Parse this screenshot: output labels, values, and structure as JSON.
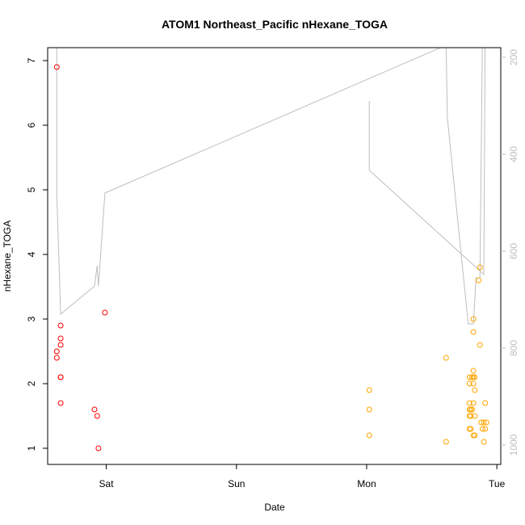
{
  "chart_data": {
    "type": "scatter",
    "title": "ATOM1 Northeast_Pacific nHexane_TOGA",
    "xlabel": "Date",
    "ylabel": "nHexane_TOGA",
    "x_unit": "days since Sat 00:00",
    "xlim": [
      -0.45,
      3.03
    ],
    "ylim": [
      0.75,
      7.2
    ],
    "x_ticks": [
      {
        "value": 0,
        "label": "Sat"
      },
      {
        "value": 1,
        "label": "Sun"
      },
      {
        "value": 2,
        "label": "Mon"
      },
      {
        "value": 3,
        "label": "Tue"
      }
    ],
    "y_ticks": [
      {
        "value": 1,
        "label": "1"
      },
      {
        "value": 2,
        "label": "2"
      },
      {
        "value": 3,
        "label": "3"
      },
      {
        "value": 4,
        "label": "4"
      },
      {
        "value": 5,
        "label": "5"
      },
      {
        "value": 6,
        "label": "6"
      },
      {
        "value": 7,
        "label": "7"
      }
    ],
    "right_axis": {
      "range": [
        180,
        1040
      ],
      "reversed": true,
      "ticks": [
        {
          "value": 200,
          "label": "200"
        },
        {
          "value": 400,
          "label": "400"
        },
        {
          "value": 600,
          "label": "600"
        },
        {
          "value": 800,
          "label": "800"
        },
        {
          "value": 1000,
          "label": "1000"
        }
      ]
    },
    "series": [
      {
        "color": "#ff0000",
        "points": [
          {
            "x": -0.38,
            "y": 6.9
          },
          {
            "x": -0.38,
            "y": 2.5
          },
          {
            "x": -0.38,
            "y": 2.4
          },
          {
            "x": -0.35,
            "y": 2.9
          },
          {
            "x": -0.35,
            "y": 2.7
          },
          {
            "x": -0.35,
            "y": 2.6
          },
          {
            "x": -0.35,
            "y": 2.1
          },
          {
            "x": -0.35,
            "y": 2.1
          },
          {
            "x": -0.35,
            "y": 1.7
          },
          {
            "x": -0.09,
            "y": 1.6
          },
          {
            "x": -0.07,
            "y": 1.5
          },
          {
            "x": -0.06,
            "y": 1.0
          },
          {
            "x": -0.01,
            "y": 3.1
          }
        ]
      },
      {
        "color": "#ffa500",
        "points": [
          {
            "x": 2.02,
            "y": 1.9
          },
          {
            "x": 2.02,
            "y": 1.6
          },
          {
            "x": 2.02,
            "y": 1.2
          },
          {
            "x": 2.61,
            "y": 2.4
          },
          {
            "x": 2.61,
            "y": 1.1
          },
          {
            "x": 2.79,
            "y": 2.1
          },
          {
            "x": 2.79,
            "y": 2.0
          },
          {
            "x": 2.79,
            "y": 1.7
          },
          {
            "x": 2.79,
            "y": 1.6
          },
          {
            "x": 2.79,
            "y": 1.5
          },
          {
            "x": 2.79,
            "y": 1.3
          },
          {
            "x": 2.8,
            "y": 1.6
          },
          {
            "x": 2.8,
            "y": 1.5
          },
          {
            "x": 2.8,
            "y": 1.3
          },
          {
            "x": 2.81,
            "y": 2.1
          },
          {
            "x": 2.81,
            "y": 1.6
          },
          {
            "x": 2.82,
            "y": 3.0
          },
          {
            "x": 2.82,
            "y": 2.8
          },
          {
            "x": 2.82,
            "y": 2.2
          },
          {
            "x": 2.82,
            "y": 2.1
          },
          {
            "x": 2.82,
            "y": 2.0
          },
          {
            "x": 2.82,
            "y": 1.7
          },
          {
            "x": 2.82,
            "y": 1.2
          },
          {
            "x": 2.83,
            "y": 2.1
          },
          {
            "x": 2.83,
            "y": 1.9
          },
          {
            "x": 2.83,
            "y": 1.5
          },
          {
            "x": 2.83,
            "y": 1.2
          },
          {
            "x": 2.86,
            "y": 3.6
          },
          {
            "x": 2.87,
            "y": 3.8
          },
          {
            "x": 2.87,
            "y": 2.6
          },
          {
            "x": 2.88,
            "y": 1.4
          },
          {
            "x": 2.89,
            "y": 1.3
          },
          {
            "x": 2.9,
            "y": 1.4
          },
          {
            "x": 2.9,
            "y": 1.1
          },
          {
            "x": 2.91,
            "y": 1.3
          },
          {
            "x": 2.91,
            "y": 1.7
          },
          {
            "x": 2.92,
            "y": 1.4
          }
        ]
      }
    ],
    "secondary_line": {
      "color": "#bebebe",
      "axis": "right",
      "segments": [
        [
          {
            "x": -0.39,
            "y": 160
          },
          {
            "x": -0.38,
            "y": 180
          },
          {
            "x": -0.38,
            "y": 480
          },
          {
            "x": -0.35,
            "y": 730
          },
          {
            "x": -0.09,
            "y": 672
          },
          {
            "x": -0.07,
            "y": 630
          },
          {
            "x": -0.06,
            "y": 672
          },
          {
            "x": -0.01,
            "y": 480
          },
          {
            "x": 2.61,
            "y": 175
          },
          {
            "x": 2.62,
            "y": 325
          },
          {
            "x": 2.78,
            "y": 750
          },
          {
            "x": 2.82,
            "y": 750
          },
          {
            "x": 2.84,
            "y": 655
          },
          {
            "x": 2.87,
            "y": 655
          },
          {
            "x": 2.89,
            "y": 140
          }
        ],
        [
          {
            "x": 2.02,
            "y": 290
          },
          {
            "x": 2.02,
            "y": 433
          },
          {
            "x": 2.9,
            "y": 648
          },
          {
            "x": 2.91,
            "y": 140
          }
        ]
      ]
    }
  }
}
